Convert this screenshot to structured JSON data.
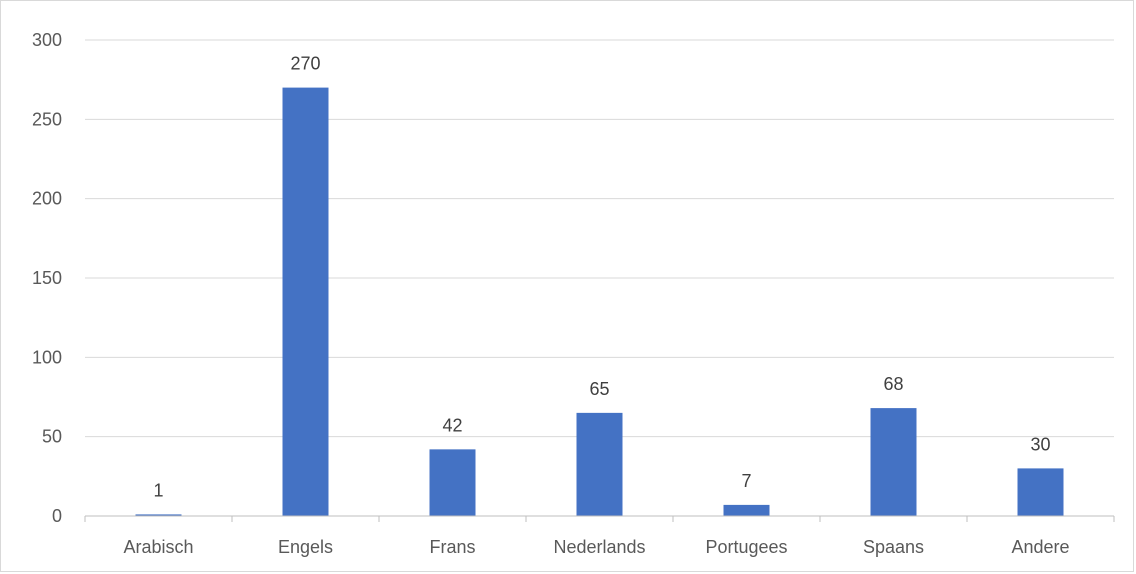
{
  "chart_data": {
    "type": "bar",
    "categories": [
      "Arabisch",
      "Engels",
      "Frans",
      "Nederlands",
      "Portugees",
      "Spaans",
      "Andere"
    ],
    "values": [
      1,
      270,
      42,
      65,
      7,
      68,
      30
    ],
    "title": "",
    "xlabel": "",
    "ylabel": "",
    "ylim": [
      0,
      300
    ],
    "yticks": [
      0,
      50,
      100,
      150,
      200,
      250,
      300
    ],
    "grid": true,
    "legend": "none",
    "data_labels": true,
    "bar_color": "#4472c4"
  }
}
